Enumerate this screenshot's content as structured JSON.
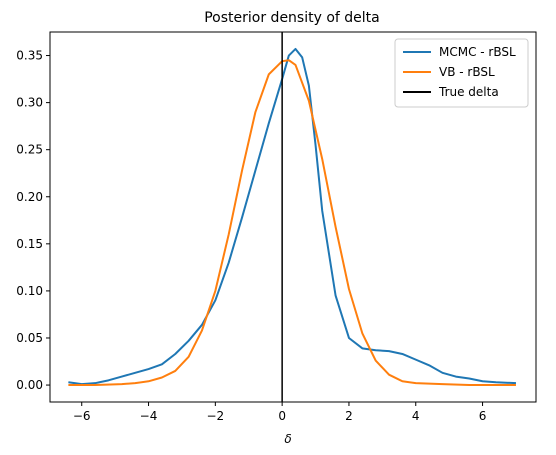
{
  "chart_data": {
    "type": "line",
    "title": "Posterior density of delta",
    "xlabel": "δ",
    "ylabel": "",
    "xlim": [
      -6.95,
      7.6
    ],
    "ylim": [
      -0.018,
      0.375
    ],
    "xticks": [
      -6,
      -4,
      -2,
      0,
      2,
      4,
      6
    ],
    "yticks": [
      0.0,
      0.05,
      0.1,
      0.15,
      0.2,
      0.25,
      0.3,
      0.35
    ],
    "ytick_labels": [
      "0.00",
      "0.05",
      "0.10",
      "0.15",
      "0.20",
      "0.25",
      "0.30",
      "0.35"
    ],
    "grid": false,
    "legend_position": "top-right",
    "series": [
      {
        "name": "MCMC - rBSL",
        "color": "#1f77b4",
        "x": [
          -6.4,
          -6.0,
          -5.6,
          -5.2,
          -4.8,
          -4.4,
          -4.0,
          -3.6,
          -3.2,
          -2.8,
          -2.4,
          -2.0,
          -1.6,
          -1.2,
          -0.8,
          -0.4,
          0.0,
          0.2,
          0.4,
          0.6,
          0.8,
          1.0,
          1.2,
          1.6,
          2.0,
          2.4,
          2.8,
          3.2,
          3.6,
          4.0,
          4.4,
          4.8,
          5.2,
          5.6,
          6.0,
          6.4,
          7.0
        ],
        "y": [
          0.003,
          0.001,
          0.002,
          0.005,
          0.009,
          0.013,
          0.017,
          0.022,
          0.033,
          0.047,
          0.064,
          0.09,
          0.13,
          0.178,
          0.228,
          0.278,
          0.325,
          0.35,
          0.357,
          0.348,
          0.318,
          0.255,
          0.185,
          0.095,
          0.05,
          0.039,
          0.037,
          0.036,
          0.033,
          0.027,
          0.021,
          0.013,
          0.009,
          0.007,
          0.004,
          0.003,
          0.002
        ]
      },
      {
        "name": "VB - rBSL",
        "color": "#ff7f0e",
        "x": [
          -6.4,
          -5.6,
          -4.8,
          -4.4,
          -4.0,
          -3.6,
          -3.2,
          -2.8,
          -2.4,
          -2.0,
          -1.6,
          -1.2,
          -0.8,
          -0.4,
          0.0,
          0.2,
          0.4,
          0.8,
          1.2,
          1.6,
          2.0,
          2.4,
          2.8,
          3.2,
          3.6,
          4.0,
          4.8,
          5.6,
          6.4,
          7.0
        ],
        "y": [
          0.0,
          0.0,
          0.001,
          0.002,
          0.004,
          0.008,
          0.015,
          0.03,
          0.058,
          0.1,
          0.16,
          0.228,
          0.29,
          0.33,
          0.344,
          0.345,
          0.34,
          0.302,
          0.24,
          0.168,
          0.102,
          0.055,
          0.026,
          0.011,
          0.004,
          0.002,
          0.001,
          0.0,
          0.0,
          0.0
        ]
      },
      {
        "name": "True delta",
        "color": "#000000",
        "vline_x": 0.0
      }
    ]
  }
}
